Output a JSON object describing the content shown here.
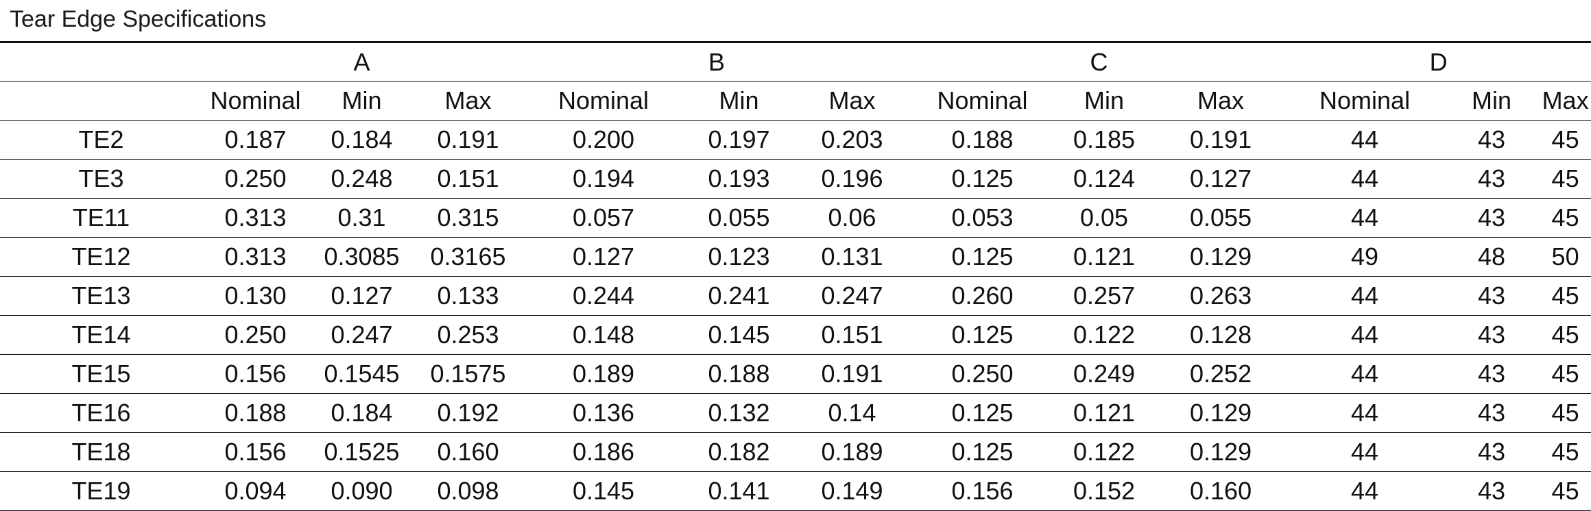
{
  "title": "Tear Edge Specifications",
  "groups": [
    "A",
    "B",
    "C",
    "D"
  ],
  "subcolumns": [
    "Nominal",
    "Min",
    "Max"
  ],
  "rows": [
    {
      "label": "TE2",
      "values": [
        "0.187",
        "0.184",
        "0.191",
        "0.200",
        "0.197",
        "0.203",
        "0.188",
        "0.185",
        "0.191",
        "44",
        "43",
        "45"
      ]
    },
    {
      "label": "TE3",
      "values": [
        "0.250",
        "0.248",
        "0.151",
        "0.194",
        "0.193",
        "0.196",
        "0.125",
        "0.124",
        "0.127",
        "44",
        "43",
        "45"
      ]
    },
    {
      "label": "TE11",
      "values": [
        "0.313",
        "0.31",
        "0.315",
        "0.057",
        "0.055",
        "0.06",
        "0.053",
        "0.05",
        "0.055",
        "44",
        "43",
        "45"
      ]
    },
    {
      "label": "TE12",
      "values": [
        "0.313",
        "0.3085",
        "0.3165",
        "0.127",
        "0.123",
        "0.131",
        "0.125",
        "0.121",
        "0.129",
        "49",
        "48",
        "50"
      ]
    },
    {
      "label": "TE13",
      "values": [
        "0.130",
        "0.127",
        "0.133",
        "0.244",
        "0.241",
        "0.247",
        "0.260",
        "0.257",
        "0.263",
        "44",
        "43",
        "45"
      ]
    },
    {
      "label": "TE14",
      "values": [
        "0.250",
        "0.247",
        "0.253",
        "0.148",
        "0.145",
        "0.151",
        "0.125",
        "0.122",
        "0.128",
        "44",
        "43",
        "45"
      ]
    },
    {
      "label": "TE15",
      "values": [
        "0.156",
        "0.1545",
        "0.1575",
        "0.189",
        "0.188",
        "0.191",
        "0.250",
        "0.249",
        "0.252",
        "44",
        "43",
        "45"
      ]
    },
    {
      "label": "TE16",
      "values": [
        "0.188",
        "0.184",
        "0.192",
        "0.136",
        "0.132",
        "0.14",
        "0.125",
        "0.121",
        "0.129",
        "44",
        "43",
        "45"
      ]
    },
    {
      "label": "TE18",
      "values": [
        "0.156",
        "0.1525",
        "0.160",
        "0.186",
        "0.182",
        "0.189",
        "0.125",
        "0.122",
        "0.129",
        "44",
        "43",
        "45"
      ]
    },
    {
      "label": "TE19",
      "values": [
        "0.094",
        "0.090",
        "0.098",
        "0.145",
        "0.141",
        "0.149",
        "0.156",
        "0.152",
        "0.160",
        "44",
        "43",
        "45"
      ]
    }
  ]
}
